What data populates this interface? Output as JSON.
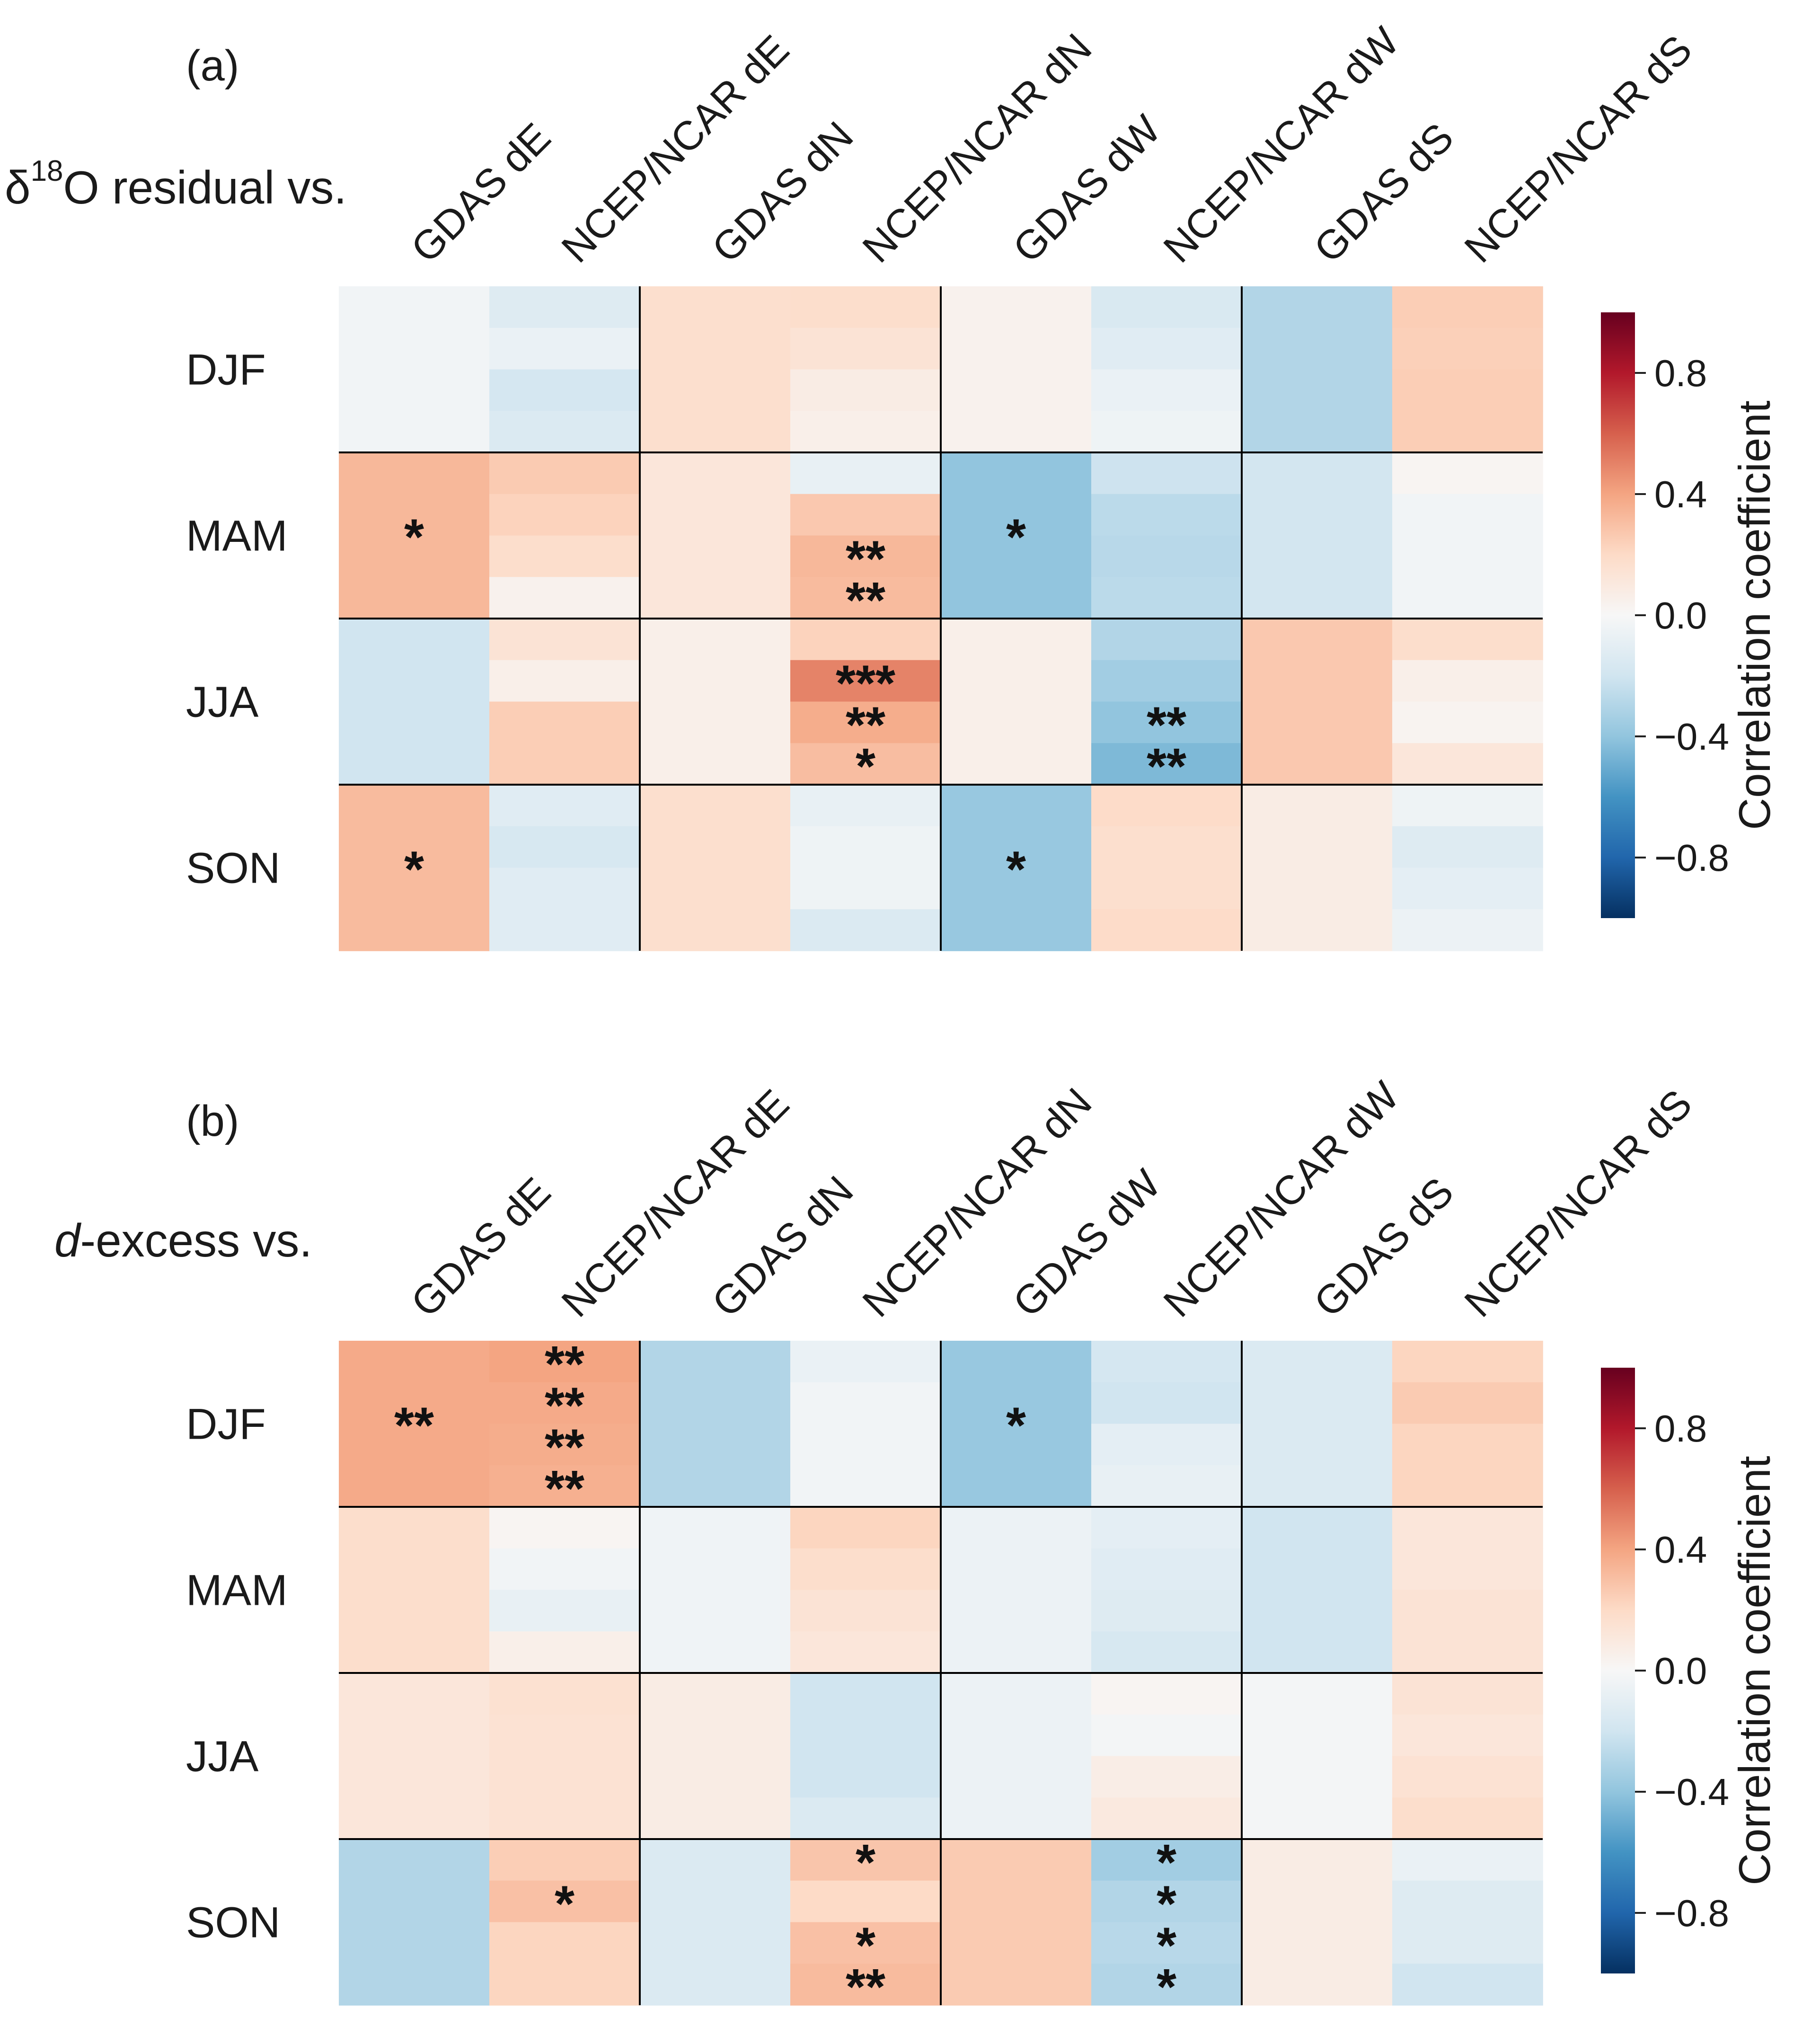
{
  "colors": {
    "neg_extreme": "#053061",
    "neg_mid": "#4393c3",
    "neg_light": "#d1e5f0",
    "neutral": "#f7f7f7",
    "pos_light": "#fddbc7",
    "pos_mid": "#d6604d",
    "pos_extreme": "#67001f",
    "grid_line": "#000000"
  },
  "chart_data": [
    {
      "type": "heatmap",
      "panel_label": "(a)",
      "ylabel_prefix": "δ",
      "ylabel_sup": "18",
      "ylabel_suffix": "O residual vs.",
      "columns": [
        "GDAS dE",
        "NCEP/NCAR dE",
        "GDAS dN",
        "NCEP/NCAR dN",
        "GDAS dW",
        "NCEP/NCAR dW",
        "GDAS dS",
        "NCEP/NCAR dS"
      ],
      "rows": [
        "DJF",
        "MAM",
        "JJA",
        "SON"
      ],
      "subrows_per_row": 4,
      "colorbar": {
        "label": "Correlation coefficient",
        "range": [
          -1,
          1
        ],
        "ticks": [
          "0.8",
          "0.4",
          "0.0",
          "−0.4",
          "−0.8"
        ],
        "tick_values": [
          0.8,
          0.4,
          0.0,
          -0.4,
          -0.8
        ]
      },
      "cells": [
        [
          [
            -0.03,
            -0.03,
            -0.03,
            -0.03
          ],
          [
            -0.13,
            -0.07,
            -0.18,
            -0.15
          ],
          [
            0.17,
            0.17,
            0.17,
            0.17
          ],
          [
            0.18,
            0.14,
            0.08,
            0.06
          ],
          [
            0.04,
            0.04,
            0.04,
            0.04
          ],
          [
            -0.16,
            -0.12,
            -0.07,
            -0.05
          ],
          [
            -0.3,
            -0.3,
            -0.3,
            -0.3
          ],
          [
            0.25,
            0.24,
            0.25,
            0.25
          ]
        ],
        [
          [
            0.33,
            0.33,
            0.33,
            0.33
          ],
          [
            0.26,
            0.23,
            0.18,
            0.04
          ],
          [
            0.12,
            0.12,
            0.12,
            0.12
          ],
          [
            -0.08,
            0.27,
            0.33,
            0.32
          ],
          [
            -0.4,
            -0.4,
            -0.4,
            -0.4
          ],
          [
            -0.21,
            -0.27,
            -0.28,
            -0.27
          ],
          [
            -0.19,
            -0.19,
            -0.19,
            -0.19
          ],
          [
            0.02,
            -0.03,
            -0.03,
            -0.03
          ]
        ],
        [
          [
            -0.2,
            -0.2,
            -0.2,
            -0.2
          ],
          [
            0.14,
            0.06,
            0.25,
            0.25
          ],
          [
            0.06,
            0.06,
            0.06,
            0.06
          ],
          [
            0.23,
            0.5,
            0.37,
            0.31
          ],
          [
            0.06,
            0.06,
            0.06,
            0.06
          ],
          [
            -0.3,
            -0.35,
            -0.4,
            -0.45
          ],
          [
            0.27,
            0.27,
            0.27,
            0.27
          ],
          [
            0.18,
            0.06,
            0.03,
            0.12
          ]
        ],
        [
          [
            0.32,
            0.32,
            0.32,
            0.32
          ],
          [
            -0.12,
            -0.17,
            -0.12,
            -0.12
          ],
          [
            0.17,
            0.17,
            0.17,
            0.17
          ],
          [
            -0.08,
            -0.05,
            -0.05,
            -0.15
          ],
          [
            -0.38,
            -0.38,
            -0.38,
            -0.38
          ],
          [
            0.19,
            0.17,
            0.17,
            0.19
          ],
          [
            0.08,
            0.08,
            0.08,
            0.08
          ],
          [
            -0.05,
            -0.13,
            -0.1,
            -0.06
          ]
        ]
      ],
      "stars": [
        [
          "",
          "",
          "",
          "",
          "",
          "",
          "",
          ""
        ],
        [
          [
            "*"
          ],
          [
            "",
            "",
            "",
            ""
          ],
          "",
          [
            "",
            "",
            "**",
            "**"
          ],
          [
            "*"
          ],
          "",
          "",
          ""
        ],
        [
          "",
          [
            "",
            "",
            "",
            ""
          ],
          "",
          [
            "",
            "***",
            "**",
            "*"
          ],
          "",
          [
            "",
            "",
            "**",
            "**"
          ],
          "",
          ""
        ],
        [
          [
            "*"
          ],
          "",
          "",
          "",
          [
            "*"
          ],
          "",
          "",
          ""
        ]
      ]
    },
    {
      "type": "heatmap",
      "panel_label": "(b)",
      "ylabel_italic": "d",
      "ylabel_suffix": "-excess vs.",
      "columns": [
        "GDAS dE",
        "NCEP/NCAR dE",
        "GDAS dN",
        "NCEP/NCAR dN",
        "GDAS dW",
        "NCEP/NCAR dW",
        "GDAS dS",
        "NCEP/NCAR dS"
      ],
      "rows": [
        "DJF",
        "MAM",
        "JJA",
        "SON"
      ],
      "subrows_per_row": 4,
      "colorbar": {
        "label": "Correlation coefficient",
        "range": [
          -1,
          1
        ],
        "ticks": [
          "0.8",
          "0.4",
          "0.0",
          "−0.4",
          "−0.8"
        ],
        "tick_values": [
          0.8,
          0.4,
          0.0,
          -0.4,
          -0.8
        ]
      },
      "cells": [
        [
          [
            0.38,
            0.38,
            0.38,
            0.38
          ],
          [
            0.4,
            0.38,
            0.37,
            0.36
          ],
          [
            -0.3,
            -0.3,
            -0.3,
            -0.3
          ],
          [
            -0.07,
            -0.03,
            -0.03,
            -0.03
          ],
          [
            -0.38,
            -0.38,
            -0.38,
            -0.38
          ],
          [
            -0.18,
            -0.2,
            -0.1,
            -0.08
          ],
          [
            -0.15,
            -0.15,
            -0.15,
            -0.15
          ],
          [
            0.22,
            0.26,
            0.22,
            0.22
          ]
        ],
        [
          [
            0.18,
            0.18,
            0.18,
            0.18
          ],
          [
            0.02,
            -0.03,
            -0.08,
            0.06
          ],
          [
            -0.04,
            -0.04,
            -0.04,
            -0.04
          ],
          [
            0.22,
            0.18,
            0.14,
            0.12
          ],
          [
            -0.06,
            -0.06,
            -0.06,
            -0.06
          ],
          [
            -0.1,
            -0.12,
            -0.13,
            -0.17
          ],
          [
            -0.2,
            -0.2,
            -0.2,
            -0.2
          ],
          [
            0.12,
            0.12,
            0.14,
            0.14
          ]
        ],
        [
          [
            0.12,
            0.12,
            0.12,
            0.12
          ],
          [
            0.16,
            0.15,
            0.15,
            0.15
          ],
          [
            0.08,
            0.08,
            0.08,
            0.08
          ],
          [
            -0.2,
            -0.2,
            -0.2,
            -0.15
          ],
          [
            -0.06,
            -0.06,
            -0.06,
            -0.06
          ],
          [
            0.02,
            -0.02,
            0.07,
            0.1
          ],
          [
            -0.02,
            -0.02,
            -0.02,
            -0.02
          ],
          [
            0.14,
            0.12,
            0.15,
            0.18
          ]
        ],
        [
          [
            -0.3,
            -0.3,
            -0.3,
            -0.3
          ],
          [
            0.25,
            0.3,
            0.22,
            0.22
          ],
          [
            -0.15,
            -0.15,
            -0.15,
            -0.15
          ],
          [
            0.28,
            0.2,
            0.3,
            0.32
          ],
          [
            0.26,
            0.26,
            0.26,
            0.26
          ],
          [
            -0.35,
            -0.3,
            -0.28,
            -0.3
          ],
          [
            0.08,
            0.08,
            0.08,
            0.08
          ],
          [
            -0.07,
            -0.13,
            -0.13,
            -0.2
          ]
        ]
      ],
      "stars": [
        [
          [
            "**"
          ],
          [
            "**",
            "**",
            "**",
            "**"
          ],
          "",
          "",
          [
            "*"
          ],
          "",
          "",
          ""
        ],
        [
          "",
          "",
          "",
          "",
          "",
          "",
          "",
          ""
        ],
        [
          "",
          "",
          "",
          "",
          "",
          "",
          "",
          ""
        ],
        [
          "",
          [
            "",
            "*",
            "",
            ""
          ],
          "",
          [
            "*",
            "",
            "*",
            "**"
          ],
          "",
          [
            "*",
            "*",
            "*",
            "*"
          ],
          "",
          ""
        ]
      ]
    }
  ]
}
